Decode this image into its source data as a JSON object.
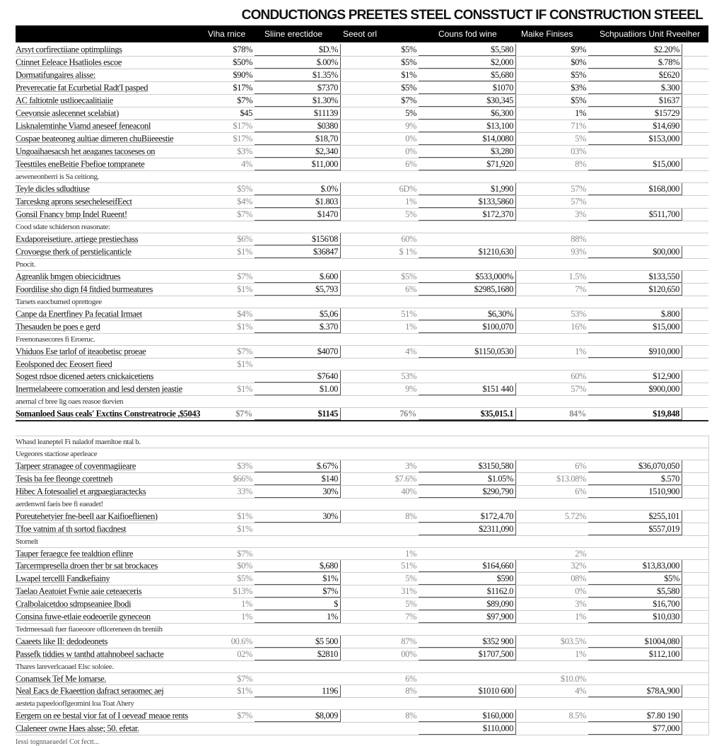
{
  "title": "CONDUCTIONGS PREETES STEEL CONSSTUCT IF CONSTRUCTION STEEEL",
  "headers": [
    "Viha rnice",
    "Sliine erectidoe",
    "Seeot orl",
    "Couns fod wine",
    "Maike Finises",
    "Schpuatiiors Unit Rveeiher"
  ],
  "sections": [
    {
      "rows": [
        {
          "label": "Arsyt corfirectiiane optimpliings",
          "cells": [
            "$78%",
            "$D.%",
            "$5%",
            "$5,580",
            "$9%",
            "$2.20%"
          ],
          "dark": true
        },
        {
          "label": "Ctinnet Eeleace Hsatlioles escoe",
          "cells": [
            "$50%",
            "$.00%",
            "$5%",
            "$2,000",
            "$0%",
            "$.78%"
          ],
          "dark": true
        },
        {
          "label": "Dormatifungaires alisse:",
          "cells": [
            "$90%",
            "$1.35%",
            "$1%",
            "$5,680",
            "$5%",
            "$£620"
          ],
          "dark": true
        },
        {
          "label": "Preverecatie fat Ecurbetial Radt'I pasped",
          "cells": [
            "$17%",
            "$7370",
            "$5%",
            "$1070",
            "$3%",
            "$.300"
          ],
          "dark": true
        },
        {
          "label": "AC faltiotnle ustlioecaalitiaiie",
          "cells": [
            "$7%",
            "$1.30%",
            "$7%",
            "$30,345",
            "$5%",
            "$1637"
          ],
          "dark": true
        },
        {
          "label": "Ceevonsie aslecennet scelabiat)",
          "cells": [
            "$45",
            "$11139",
            "5%",
            "$6,300",
            "1%",
            "$15729"
          ],
          "dark": true
        },
        {
          "label": "Lisknalemtinhe Viamd aneseef feneaconl",
          "cells": [
            "$17%",
            "$0380",
            "9%",
            "$13,100",
            "71%",
            "$14,690"
          ]
        },
        {
          "label": "Cospae beateoneg aultiae dimeren chuBiieeestie",
          "cells": [
            "$17%",
            "$18,70",
            "0%",
            "$14,0080",
            "5%",
            "$153,000"
          ]
        },
        {
          "label": "Ungoaihaesacsh het aeaganes tacoseses on",
          "cells": [
            "$3%",
            "$2,340",
            "0%",
            "$3,280",
            "03%",
            ""
          ]
        },
        {
          "label": "Teesttiles eneBeitie Fbefioe tompranete",
          "cells": [
            "4%",
            "$11,000",
            "6%",
            "$71,920",
            "8%",
            "$15,000"
          ]
        },
        {
          "note": "aeweneonberri is Sa ceitiong."
        }
      ]
    },
    {
      "rows": [
        {
          "label": "Teyle dicles sdludtiuse",
          "cells": [
            "$5%",
            "$.0%",
            "6D%",
            "$1,990",
            "57%",
            "$168,000"
          ]
        },
        {
          "label": "Tarceskng aprons sesecheleseifEect",
          "cells": [
            "$4%",
            "$1.803",
            "1%",
            "$133,5860",
            "57%",
            ""
          ]
        },
        {
          "label": "Gonsil Fnancy bmp Indel Rueent!",
          "cells": [
            "$7%",
            "$1470",
            "5%",
            "$172,370",
            "3%",
            "$511,700"
          ]
        },
        {
          "note": "Cood sdate schiderson reasonate:"
        },
        {
          "label": "Exdaporeisetiure, artiege prestiechass",
          "cells": [
            "$6%",
            "$156'08",
            "60%",
            "",
            "88%",
            ""
          ]
        },
        {
          "label": "Crovoegse therk of perstielicanticle",
          "cells": [
            "$1%",
            "$36847",
            "$ 1%",
            "$1210,630",
            "93%",
            "$00,000"
          ]
        },
        {
          "note": "Pnocit."
        },
        {
          "label": "Agreanlik bmgen obiecicidtrues",
          "cells": [
            "$7%",
            "$.600",
            "$5%",
            "$533,000%",
            "1.5%",
            "$133,550"
          ]
        },
        {
          "label": "Foordilise sho dign f4 fitdied burmeatures",
          "cells": [
            "$1%",
            "$5,793",
            "6%",
            "$2985,1680",
            "7%",
            "$120,650"
          ]
        },
        {
          "note": "Tarsets eaocbumed oprettogee"
        },
        {
          "label": "Canpe da Enertfiney Pa fecatial Irmaet",
          "cells": [
            "$4%",
            "$5,06",
            "51%",
            "$6,30%",
            "53%",
            "$.800"
          ]
        },
        {
          "label": "Thesauden be poes e gerd",
          "cells": [
            "$1%",
            "$.370",
            "1%",
            "$100,070",
            "16%",
            "$15,000"
          ]
        },
        {
          "note": "Freenonasecores fi Eroeruc."
        },
        {
          "label": "Vhiduos Ese tarlof of iteaobetisc proeae",
          "cells": [
            "$7%",
            "$4070",
            "4%",
            "$1150,0530",
            "1%",
            "$910,000"
          ]
        },
        {
          "label": "Eeolsponed dec Eeosert fieed",
          "cells": [
            "$1%",
            "",
            "",
            "",
            "",
            ""
          ]
        },
        {
          "label": "Sogest rdsoe dicened aeters cnickaicetiens",
          "cells": [
            "",
            "$7640",
            "53%",
            "",
            "60%",
            "$12,900"
          ]
        },
        {
          "label": "Inermelabeere comoeration and lesd dersten jeastie",
          "cells": [
            "$1%",
            "$1.00",
            "9%",
            "$151 440",
            "57%",
            "$900,000"
          ]
        },
        {
          "note": "anemal cf bree lig oaes reasoe tkevien"
        },
        {
          "label": "Somanloed Saus ceals' Exctins Constreatrocie ,$5043",
          "cells": [
            "$7%",
            "$1145",
            "76%",
            "$35,015.1",
            "84%",
            "$19,848"
          ],
          "total": true
        }
      ]
    },
    {
      "rows": [
        {
          "note": "Whasd leaneptel Fi naladof maenltoe ntal b."
        },
        {
          "note": "Uegeores stactiose aperleace"
        },
        {
          "label": "Tarpeer stranagee of covenmagiieare",
          "cells": [
            "$3%",
            "$.67%",
            "3%",
            "$3150,580",
            "6%",
            "$36,070,050"
          ]
        },
        {
          "label": "Tesis ba fee fleonge corettneh",
          "cells": [
            "$66%",
            "$140",
            "$7.6%",
            "$1.05%",
            "$13.08%",
            "$.570"
          ]
        },
        {
          "label": "Hibec A fotesoaliel et argpaegiaractecks",
          "cells": [
            "33%",
            "30%",
            "40%",
            "$290,790",
            "6%",
            "1510,900"
          ]
        },
        {
          "note": "aerdenwnl faeis bee fi eaeadet!"
        },
        {
          "label": "Poreutehetyier fne-beell aar Kaifioeflienen)",
          "cells": [
            "$1%",
            "30%",
            "8%",
            "$172,4.70",
            "5.72%",
            "$255,101"
          ]
        },
        {
          "label": "Tfoe vatnim af th sortod fiacdnest",
          "cells": [
            "$1%",
            "",
            "",
            "$2311,090",
            "",
            "$557,019"
          ]
        },
        {
          "note": "Stornelt"
        },
        {
          "label": "Tauper feraegce fee tealdtion eflinre",
          "cells": [
            "$7%",
            "",
            "1%",
            "",
            "2%",
            ""
          ]
        },
        {
          "label": "Tarcermpresella droen ther br sat brockaces",
          "cells": [
            "$0%",
            "$,680",
            "51%",
            "$164,660",
            "32%",
            "$13,83,000"
          ]
        },
        {
          "label": "Lwapel tercelll Fandkefiainy",
          "cells": [
            "$5%",
            "$1%",
            "5%",
            "$590",
            "08%",
            "$5%"
          ]
        },
        {
          "label": "Taelao Aeatoiet Fwnie aaie ceteaeceris",
          "cells": [
            "$13%",
            "$7%",
            "31%",
            "$1162.0",
            "0%",
            "$5,580"
          ]
        },
        {
          "label": "Cralbolaicetdoo sdmpseaniee Ibodi",
          "cells": [
            "1%",
            "$",
            "5%",
            "$89,090",
            "3%",
            "$16,700"
          ]
        },
        {
          "label": "Consina fuwe-etlaie eodeoerile gyneceon",
          "cells": [
            "1%",
            "1%",
            "7%",
            "$97,900",
            "1%",
            "$10,030"
          ]
        },
        {
          "note": "Tedrmeesaali fuer fiaoeoore ofllcereneen dn breniih"
        },
        {
          "label": "Caaeets like II: dedodeonets",
          "cells": [
            "00.6%",
            "$5 500",
            "87%",
            "$352 900",
            "$03.5%",
            "$1004,080"
          ]
        },
        {
          "label": "Passefk tiddies w tanthd attahnobeel sachacte",
          "cells": [
            "02%",
            "$2810",
            "00%",
            "$1707,500",
            "1%",
            "$112,100"
          ]
        },
        {
          "note": "Thares lareverlcaoael Elsc soloiee."
        },
        {
          "label": "Conamsek Tef Me lomarse.",
          "cells": [
            "$7%",
            "",
            "6%",
            "",
            "$10.0%",
            ""
          ]
        },
        {
          "label": "Neal Eacs de Fkaeettion dafract seraomec aej",
          "cells": [
            "$1%",
            "1196",
            "8%",
            "$1010 600",
            "4%",
            "$78A,900"
          ]
        },
        {
          "note": "aesteta papeeloofIgeomini loa Toat Ahery"
        },
        {
          "label": "Eergem on ee bestal vior fat of I oevead' meaoe rents",
          "cells": [
            "$7%",
            "$8,009",
            "8%",
            "$160,000",
            "8.5%",
            "$7.80 190"
          ]
        },
        {
          "label": "Claleneer owne Haes alsse; 50. efetar.",
          "cells": [
            "",
            "",
            "",
            "$110,000",
            "",
            "$77,000"
          ]
        }
      ]
    }
  ],
  "footer": "Iessi tognnaeaedel Cot fectt..."
}
